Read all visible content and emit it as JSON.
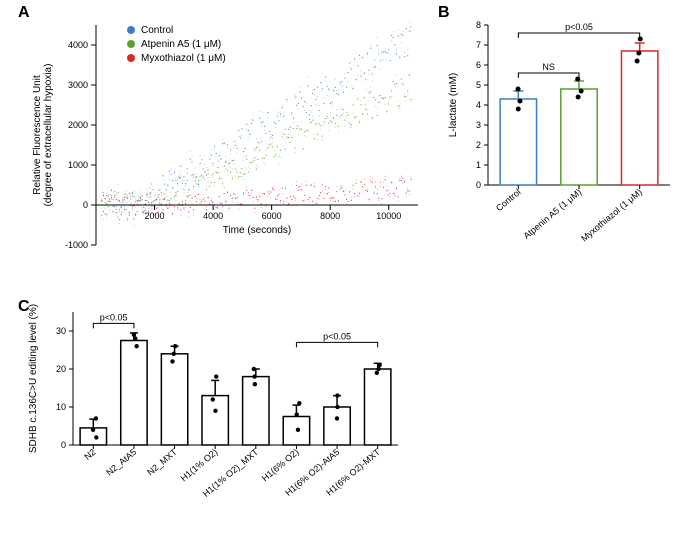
{
  "panelA": {
    "label": "A",
    "xlabel": "Time (seconds)",
    "ylabel": "Relative Fluorescence Unit\n(degree of extracellular hypoxia)",
    "xlim": [
      0,
      11000
    ],
    "ylim": [
      -1000,
      4500
    ],
    "xticks": [
      2000,
      4000,
      6000,
      8000,
      10000
    ],
    "yticks": [
      -1000,
      0,
      1000,
      2000,
      3000,
      4000
    ],
    "background_color": "#ffffff",
    "legend": [
      {
        "label": "Control",
        "color": "#3d7dc4"
      },
      {
        "label": "Atpenin A5 (1 μM)",
        "color": "#5aa02c"
      },
      {
        "label": "Myxothiazol (1 μM)",
        "color": "#d62a28"
      }
    ],
    "series": {
      "control": {
        "color": "#3d7dc4",
        "slope_start": 1500,
        "slope_rate": 0.45,
        "noise": 400,
        "baseline": 0
      },
      "atpenin": {
        "color": "#5aa02c",
        "slope_start": 1800,
        "slope_rate": 0.33,
        "noise": 350,
        "baseline": 0
      },
      "myxo": {
        "color": "#d62a28",
        "slope_start": 2000,
        "slope_rate": 0.05,
        "noise": 250,
        "baseline": 0
      }
    }
  },
  "panelB": {
    "label": "B",
    "ylabel": "L-lactate (mM)",
    "ylim": [
      0,
      8
    ],
    "yticks": [
      0,
      1,
      2,
      3,
      4,
      5,
      6,
      7,
      8
    ],
    "background_color": "#ffffff",
    "bar_width": 0.6,
    "categories": [
      "Control",
      "Atpenin A5 (1 μM)",
      "Myxothiazol (1 μM)"
    ],
    "colors": [
      "#3d7dc4",
      "#5aa02c",
      "#d62a28"
    ],
    "means": [
      4.3,
      4.8,
      6.7
    ],
    "errs": [
      0.4,
      0.4,
      0.4
    ],
    "points": [
      [
        3.8,
        4.2,
        4.8
      ],
      [
        4.4,
        4.7,
        5.3
      ],
      [
        6.2,
        6.6,
        7.3
      ]
    ],
    "sig": [
      {
        "from": 0,
        "to": 1,
        "label": "NS",
        "y": 5.6
      },
      {
        "from": 0,
        "to": 2,
        "label": "p<0.05",
        "y": 7.6
      }
    ]
  },
  "panelC": {
    "label": "C",
    "ylabel": "SDHB c.136C>U editing level (%)",
    "ylim": [
      0,
      35
    ],
    "yticks": [
      0,
      10,
      20,
      30
    ],
    "background_color": "#ffffff",
    "bar_width": 0.65,
    "bar_color": "#000000",
    "categories": [
      "N2",
      "N2_AtA5",
      "N2_MXT",
      "H1(1% O2)",
      "H1(1% O2)_MXT",
      "H1(6% O2)",
      "H1(6% O2)-AtA5",
      "H1(6% O2)-MXT"
    ],
    "means": [
      4.5,
      27.5,
      24,
      13,
      18,
      7.5,
      10,
      20
    ],
    "errs": [
      2.3,
      2.0,
      2.0,
      4.0,
      2.0,
      3.0,
      3.0,
      1.5
    ],
    "points": [
      [
        2,
        4,
        7
      ],
      [
        26,
        28,
        29
      ],
      [
        22,
        24,
        26
      ],
      [
        9,
        12,
        18
      ],
      [
        16,
        18,
        20
      ],
      [
        4,
        8,
        11
      ],
      [
        7,
        10,
        13
      ],
      [
        19,
        20,
        21
      ]
    ],
    "sig": [
      {
        "from": 0,
        "to": 1,
        "label": "p<0.05",
        "y": 32
      },
      {
        "from": 5,
        "to": 7,
        "label": "p<0.05",
        "y": 27
      }
    ]
  }
}
